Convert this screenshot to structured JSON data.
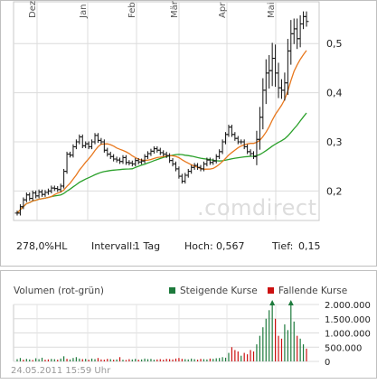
{
  "chart_data": [
    {
      "type": "ohlc",
      "months": [
        "Dez",
        "Jan",
        "Feb",
        "Mär",
        "Apr",
        "Mai"
      ],
      "y_ticks": [
        "0,5",
        "0,4",
        "0,3",
        "0,2"
      ],
      "ylim": [
        0.14,
        0.585
      ],
      "watermark": ".comdirect",
      "grid": true,
      "price": [
        0.155,
        0.168,
        0.182,
        0.192,
        0.185,
        0.196,
        0.19,
        0.198,
        0.193,
        0.197,
        0.2,
        0.206,
        0.205,
        0.203,
        0.21,
        0.24,
        0.275,
        0.273,
        0.29,
        0.3,
        0.31,
        0.292,
        0.296,
        0.29,
        0.3,
        0.313,
        0.303,
        0.3,
        0.283,
        0.275,
        0.27,
        0.265,
        0.263,
        0.26,
        0.268,
        0.258,
        0.257,
        0.255,
        0.262,
        0.259,
        0.261,
        0.27,
        0.276,
        0.281,
        0.286,
        0.283,
        0.278,
        0.275,
        0.272,
        0.262,
        0.255,
        0.245,
        0.23,
        0.22,
        0.232,
        0.24,
        0.248,
        0.252,
        0.248,
        0.245,
        0.255,
        0.263,
        0.258,
        0.261,
        0.27,
        0.28,
        0.3,
        0.315,
        0.33,
        0.315,
        0.307,
        0.3,
        0.3,
        0.29,
        0.28,
        0.276,
        0.27,
        0.305,
        0.35,
        0.405,
        0.44,
        0.445,
        0.47,
        0.44,
        0.41,
        0.405,
        0.42,
        0.485,
        0.52,
        0.53,
        0.51,
        0.54,
        0.555,
        0.545
      ],
      "range": [
        0.014,
        0.014,
        0.014,
        0.014,
        0.014,
        0.014,
        0.014,
        0.014,
        0.014,
        0.014,
        0.014,
        0.014,
        0.014,
        0.014,
        0.014,
        0.014,
        0.014,
        0.014,
        0.014,
        0.014,
        0.014,
        0.014,
        0.014,
        0.014,
        0.014,
        0.014,
        0.014,
        0.014,
        0.014,
        0.014,
        0.014,
        0.014,
        0.014,
        0.014,
        0.014,
        0.014,
        0.014,
        0.014,
        0.014,
        0.014,
        0.014,
        0.014,
        0.014,
        0.014,
        0.014,
        0.014,
        0.014,
        0.014,
        0.014,
        0.014,
        0.014,
        0.014,
        0.014,
        0.014,
        0.014,
        0.014,
        0.014,
        0.014,
        0.014,
        0.014,
        0.014,
        0.014,
        0.014,
        0.014,
        0.014,
        0.014,
        0.014,
        0.014,
        0.014,
        0.014,
        0.014,
        0.014,
        0.014,
        0.014,
        0.014,
        0.014,
        0.014,
        0.05,
        0.06,
        0.07,
        0.08,
        0.09,
        0.09,
        0.08,
        0.06,
        0.05,
        0.06,
        0.07,
        0.08,
        0.06,
        0.06,
        0.05,
        0.03,
        0.03
      ],
      "ma_orange_color": "#e8781e",
      "ma_green_color": "#2aa02a",
      "bar_color": "#111111",
      "stats": {
        "perf": "278,0%HL",
        "interval_label": "Intervall:",
        "interval_value": "1 Tag",
        "high_label": "Hoch:",
        "high_value": "0,567",
        "low_label": "Tief:",
        "low_value": "0,15"
      }
    },
    {
      "type": "bar",
      "title": "Volumen (rot-grün)",
      "y_ticks": [
        "2.000.000",
        "1.500.000",
        "1.000.000",
        "500.000",
        "0"
      ],
      "ylim": [
        0,
        2000000
      ],
      "legend": [
        {
          "label": "Steigende Kurse",
          "color": "#1d7a3c"
        },
        {
          "label": "Fallende Kurse",
          "color": "#cc1111"
        }
      ],
      "values": [
        80000,
        120000,
        60000,
        90000,
        70000,
        50000,
        110000,
        80000,
        130000,
        60000,
        70000,
        90000,
        80000,
        60000,
        100000,
        180000,
        90000,
        70000,
        120000,
        150000,
        100000,
        80000,
        90000,
        60000,
        100000,
        80000,
        120000,
        70000,
        60000,
        90000,
        80000,
        60000,
        70000,
        150000,
        60000,
        50000,
        80000,
        70000,
        90000,
        60000,
        70000,
        100000,
        80000,
        90000,
        60000,
        70000,
        80000,
        60000,
        90000,
        80000,
        70000,
        100000,
        120000,
        90000,
        80000,
        70000,
        100000,
        80000,
        60000,
        90000,
        80000,
        70000,
        100000,
        90000,
        110000,
        120000,
        150000,
        130000,
        300000,
        500000,
        400000,
        350000,
        200000,
        300000,
        250000,
        400000,
        350000,
        600000,
        900000,
        1200000,
        1500000,
        1800000,
        2000000,
        1500000,
        900000,
        800000,
        1300000,
        1100000,
        2000000,
        1400000,
        900000,
        800000,
        600000,
        450000
      ],
      "up": [
        1,
        1,
        0,
        1,
        1,
        0,
        1,
        1,
        1,
        0,
        0,
        1,
        1,
        0,
        1,
        1,
        0,
        1,
        1,
        1,
        1,
        0,
        1,
        0,
        1,
        1,
        0,
        0,
        0,
        0,
        1,
        0,
        1,
        0,
        1,
        0,
        0,
        1,
        1,
        0,
        1,
        1,
        1,
        1,
        1,
        0,
        0,
        0,
        0,
        0,
        0,
        0,
        0,
        0,
        1,
        1,
        1,
        1,
        0,
        0,
        1,
        1,
        0,
        1,
        1,
        1,
        1,
        1,
        1,
        0,
        0,
        0,
        1,
        0,
        0,
        0,
        0,
        1,
        1,
        1,
        1,
        1,
        1,
        0,
        0,
        0,
        1,
        1,
        1,
        1,
        0,
        1,
        1,
        0
      ],
      "timestamp": "24.05.2011 15:59 Uhr"
    }
  ]
}
